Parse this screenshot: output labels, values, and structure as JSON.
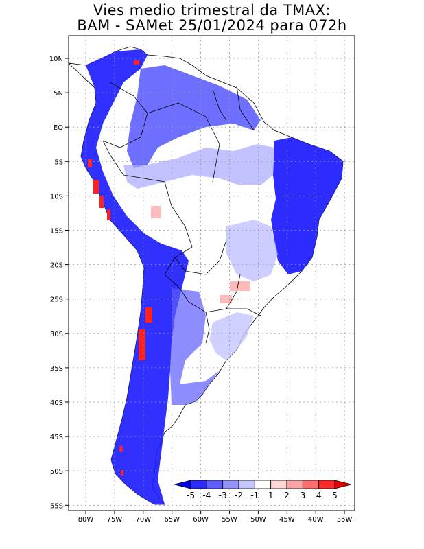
{
  "title": {
    "line1": "Vies medio trimestral da TMAX:",
    "line2": "BAM - SAMet 25/01/2024  para 072h"
  },
  "lon_ticks": [
    "80W",
    "75W",
    "70W",
    "65W",
    "60W",
    "55W",
    "50W",
    "45W",
    "40W",
    "35W"
  ],
  "lat_ticks": [
    "10N",
    "5N",
    "EQ",
    "5S",
    "10S",
    "15S",
    "20S",
    "25S",
    "30S",
    "35S",
    "40S",
    "45S",
    "50S",
    "55S"
  ],
  "colorbar": {
    "labels": [
      "-5",
      "-4",
      "-3",
      "-2",
      "-1",
      "1",
      "2",
      "3",
      "4",
      "5"
    ],
    "colors": [
      "#0000e6",
      "#2b2bff",
      "#5f5fff",
      "#9393ff",
      "#c6c6ff",
      "#ffffff",
      "#ffd6d6",
      "#ffa5a5",
      "#ff6e6e",
      "#ff2b2b",
      "#e60000"
    ]
  },
  "colors": {
    "ocean": "#ffffff",
    "land_neutral": "#ffffff",
    "blue_strong": "#1a1aff",
    "blue_mid": "#5c5cff",
    "blue_light": "#b8b8ff",
    "red": "#ff2020",
    "border": "#000000"
  }
}
